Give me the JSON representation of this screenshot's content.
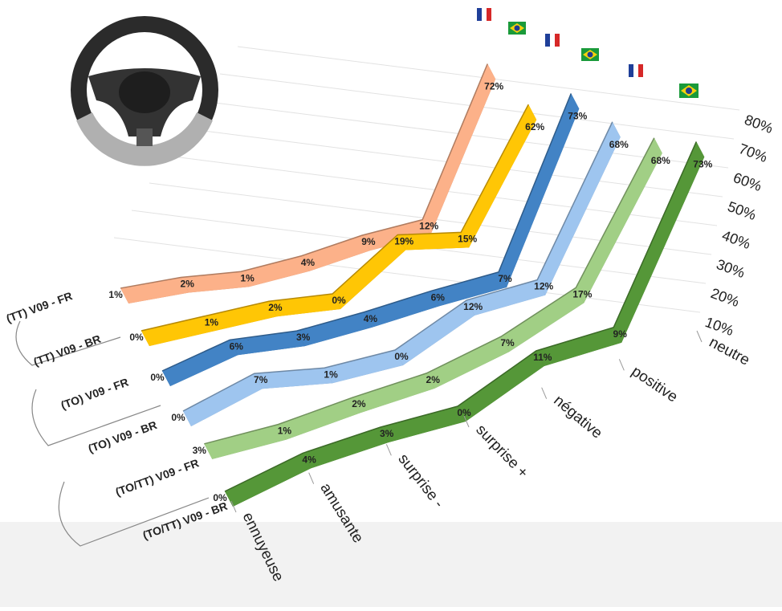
{
  "chart_data": {
    "type": "ribbon3d",
    "categories": [
      "ennuyeuse",
      "amusante",
      "surprise -",
      "surprise +",
      "négative",
      "positive",
      "neutre"
    ],
    "series": [
      {
        "name": "(TT) V09 - FR",
        "color": "#e9a47f",
        "values": [
          1,
          2,
          1,
          4,
          9,
          12,
          72
        ],
        "value_labels": [
          "1%",
          "2%",
          "1%",
          "4%",
          "9%",
          "12%",
          "72%"
        ]
      },
      {
        "name": "(TT) V09 - BR",
        "color": "#f2b705",
        "values": [
          0,
          1,
          2,
          0,
          19,
          15,
          62
        ],
        "value_labels": [
          "0%",
          "1%",
          "2%",
          "0%",
          "19%",
          "15%",
          "62%"
        ]
      },
      {
        "name": "(TO) V09 - FR",
        "color": "#3d79b6",
        "values": [
          0,
          6,
          3,
          4,
          6,
          7,
          73
        ],
        "value_labels": [
          "0%",
          "6%",
          "3%",
          "4%",
          "6%",
          "7%",
          "73%"
        ]
      },
      {
        "name": "(TO) V09 - BR",
        "color": "#92b6dd",
        "values": [
          0,
          7,
          1,
          0,
          12,
          12,
          68
        ],
        "value_labels": [
          "0%",
          "7%",
          "1%",
          "0%",
          "12%",
          "12%",
          "68%"
        ]
      },
      {
        "name": "(TO/TT) V09 - FR",
        "color": "#95c07b",
        "values": [
          3,
          1,
          2,
          2,
          7,
          17,
          68
        ],
        "value_labels": [
          "3%",
          "1%",
          "2%",
          "2%",
          "7%",
          "17%",
          "68%"
        ]
      },
      {
        "name": "(TO/TT) V09 - BR",
        "color": "#4f8c34",
        "values": [
          0,
          4,
          3,
          0,
          11,
          9,
          73
        ],
        "value_labels": [
          "0%",
          "4%",
          "3%",
          "0%",
          "11%",
          "9%",
          "73%"
        ]
      }
    ],
    "ylim": [
      0,
      80
    ],
    "yticks": [
      {
        "value": 10,
        "label": "10%"
      },
      {
        "value": 20,
        "label": "20%"
      },
      {
        "value": 30,
        "label": "30%"
      },
      {
        "value": 40,
        "label": "40%"
      },
      {
        "value": 50,
        "label": "50%"
      },
      {
        "value": 60,
        "label": "60%"
      },
      {
        "value": 70,
        "label": "70%"
      },
      {
        "value": 80,
        "label": "80%"
      }
    ],
    "grid": true
  }
}
